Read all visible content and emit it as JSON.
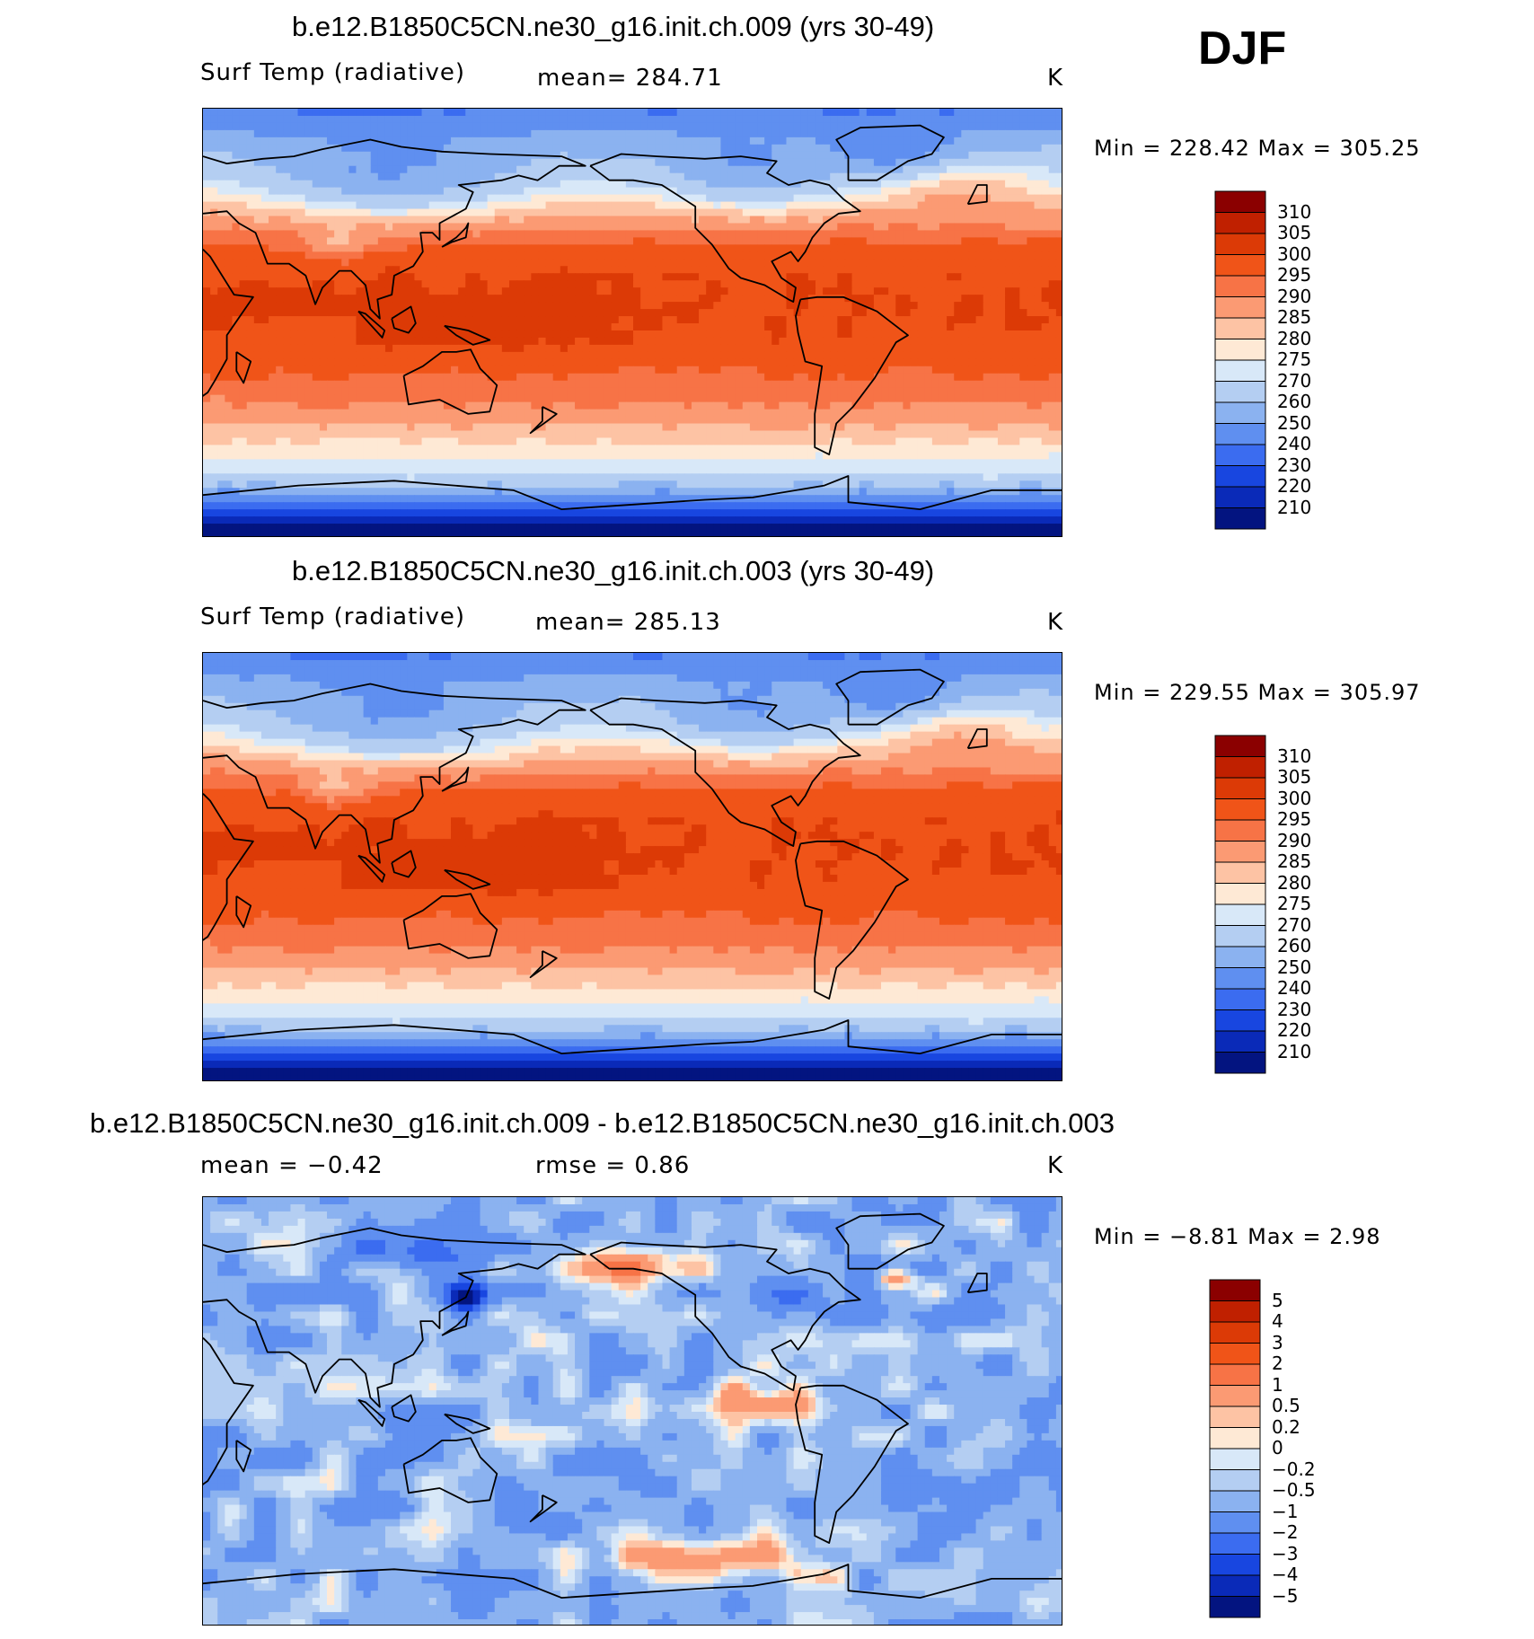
{
  "season": "DJF",
  "panels": [
    {
      "title": "b.e12.B1850C5CN.ne30_g16.init.ch.009 (yrs 30-49)",
      "left_label": "Surf Temp (radiative)",
      "center_label": "mean=  284.71",
      "units": "K",
      "minmax": "Min  =  228.42  Max  =  305.25",
      "levels": [
        "310",
        "305",
        "300",
        "295",
        "290",
        "285",
        "280",
        "275",
        "270",
        "260",
        "250",
        "240",
        "230",
        "220",
        "210"
      ],
      "colors": [
        "#8b0000",
        "#c02000",
        "#dc3a06",
        "#f05418",
        "#f77346",
        "#fb9a73",
        "#fdc3a4",
        "#fee9d5",
        "#d8e8f8",
        "#b4cef2",
        "#8bb2f0",
        "#5f8ff0",
        "#3b6cf0",
        "#1846e0",
        "#0a2ab8",
        "#031480"
      ],
      "pattern": "abs"
    },
    {
      "title": "b.e12.B1850C5CN.ne30_g16.init.ch.003 (yrs 30-49)",
      "left_label": "Surf Temp (radiative)",
      "center_label": "mean=  285.13",
      "units": "K",
      "minmax": "Min  =  229.55  Max  =  305.97",
      "levels": [
        "310",
        "305",
        "300",
        "295",
        "290",
        "285",
        "280",
        "275",
        "270",
        "260",
        "250",
        "240",
        "230",
        "220",
        "210"
      ],
      "colors": [
        "#8b0000",
        "#c02000",
        "#dc3a06",
        "#f05418",
        "#f77346",
        "#fb9a73",
        "#fdc3a4",
        "#fee9d5",
        "#d8e8f8",
        "#b4cef2",
        "#8bb2f0",
        "#5f8ff0",
        "#3b6cf0",
        "#1846e0",
        "#0a2ab8",
        "#031480"
      ],
      "pattern": "abs"
    },
    {
      "title": "b.e12.B1850C5CN.ne30_g16.init.ch.009 - b.e12.B1850C5CN.ne30_g16.init.ch.003",
      "left_label": "mean =   −0.42",
      "center_label": "rmse =    0.86",
      "units": "K",
      "minmax": "Min  =    −8.81  Max  =     2.98",
      "levels": [
        "5",
        "4",
        "3",
        "2",
        "1",
        "0.5",
        "0.2",
        "0",
        "−0.2",
        "−0.5",
        "−1",
        "−2",
        "−3",
        "−4",
        "−5"
      ],
      "colors": [
        "#8b0000",
        "#c02000",
        "#dc3a06",
        "#f05418",
        "#f77346",
        "#fb9a73",
        "#fdc3a4",
        "#fee9d5",
        "#d8e8f8",
        "#b4cef2",
        "#8bb2f0",
        "#5f8ff0",
        "#3b6cf0",
        "#1846e0",
        "#0a2ab8",
        "#031480"
      ],
      "pattern": "diff"
    }
  ],
  "chart_data": [
    {
      "type": "heatmap",
      "title": "b.e12.B1850C5CN.ne30_g16.init.ch.009 (yrs 30-49)",
      "variable": "Surf Temp (radiative)",
      "units": "K",
      "mean": 284.71,
      "min": 228.42,
      "max": 305.25,
      "contour_levels": [
        210,
        220,
        230,
        240,
        250,
        260,
        270,
        275,
        280,
        285,
        290,
        295,
        300,
        305,
        310
      ],
      "season": "DJF"
    },
    {
      "type": "heatmap",
      "title": "b.e12.B1850C5CN.ne30_g16.init.ch.003 (yrs 30-49)",
      "variable": "Surf Temp (radiative)",
      "units": "K",
      "mean": 285.13,
      "min": 229.55,
      "max": 305.97,
      "contour_levels": [
        210,
        220,
        230,
        240,
        250,
        260,
        270,
        275,
        280,
        285,
        290,
        295,
        300,
        305,
        310
      ],
      "season": "DJF"
    },
    {
      "type": "heatmap",
      "title": "b.e12.B1850C5CN.ne30_g16.init.ch.009 - b.e12.B1850C5CN.ne30_g16.init.ch.003",
      "units": "K",
      "mean": -0.42,
      "rmse": 0.86,
      "min": -8.81,
      "max": 2.98,
      "contour_levels": [
        -5,
        -4,
        -3,
        -2,
        -1,
        -0.5,
        -0.2,
        0,
        0.2,
        0.5,
        1,
        2,
        3,
        4,
        5
      ],
      "season": "DJF"
    }
  ]
}
